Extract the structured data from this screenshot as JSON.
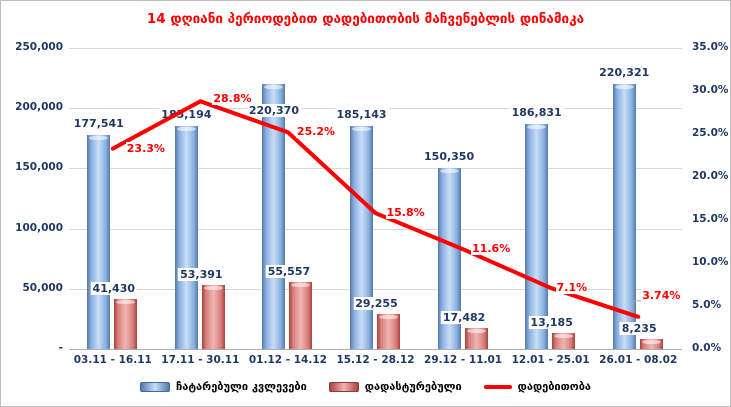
{
  "chart_data": {
    "type": "bar",
    "subtype": "grouped-bars-with-secondary-axis-line",
    "title": "14 დღიანი პერიოდებით დადებითობის მაჩვენებლის დინამიკა",
    "categories": [
      "03.11 - 16.11",
      "17.11 - 30.11",
      "01.12 - 14.12",
      "15.12 - 28.12",
      "29.12 - 11.01",
      "12.01 - 25.01",
      "26.01 - 08.02"
    ],
    "series": [
      {
        "name": "ჩატარებული კვლევები",
        "type": "bar",
        "axis": "left",
        "color": "#4F81BD",
        "values": [
          177541,
          185194,
          220370,
          185143,
          150350,
          186831,
          220321
        ],
        "labels": [
          "177,541",
          "185,194",
          "220,370",
          "185,143",
          "150,350",
          "186,831",
          "220,321"
        ]
      },
      {
        "name": "დადასტურებული",
        "type": "bar",
        "axis": "left",
        "color": "#C0504D",
        "values": [
          41430,
          53391,
          55557,
          29255,
          17482,
          13185,
          8235
        ],
        "labels": [
          "41,430",
          "53,391",
          "55,557",
          "29,255",
          "17,482",
          "13,185",
          "8,235"
        ]
      },
      {
        "name": "დადებითობა",
        "type": "line",
        "axis": "right",
        "color": "#FF0000",
        "values": [
          23.3,
          28.8,
          25.2,
          15.8,
          11.6,
          7.1,
          3.74
        ],
        "labels": [
          "23.3%",
          "28.8%",
          "25.2%",
          "15.8%",
          "11.6%",
          "7.1%",
          "3.74%"
        ]
      }
    ],
    "left_axis": {
      "min": 0,
      "max": 250000,
      "step": 50000,
      "tick_labels": [
        "-",
        "50,000",
        "100,000",
        "150,000",
        "200,000",
        "250,000"
      ]
    },
    "right_axis": {
      "min": 0,
      "max": 35,
      "step": 5,
      "tick_labels": [
        "0.0%",
        "5.0%",
        "10.0%",
        "15.0%",
        "20.0%",
        "25.0%",
        "30.0%",
        "35.0%"
      ]
    },
    "grid": true,
    "legend_position": "bottom",
    "colors": {
      "title": "#FF0000",
      "axis_text": "#1F3864",
      "bar_label_text": "#1F3864",
      "line_label_text": "#FF0000",
      "gridline": "#D9D9D9"
    }
  }
}
